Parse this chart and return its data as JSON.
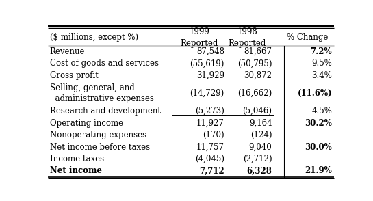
{
  "header_col0": "($ millions, except %)",
  "header_col1": "1999\nReported",
  "header_col2": "1998\nReported",
  "header_col3": "% Change",
  "rows": [
    {
      "label": "Revenue",
      "v1999": "87,548",
      "v1998": "81,667",
      "pct": "7.2%",
      "bold_label": false,
      "bold_pct": true,
      "underline_below": false
    },
    {
      "label": "Cost of goods and services",
      "v1999": "(55,619)",
      "v1998": "(50,795)",
      "pct": "9.5%",
      "bold_label": false,
      "bold_pct": false,
      "underline_below": true
    },
    {
      "label": "Gross profit",
      "v1999": "31,929",
      "v1998": "30,872",
      "pct": "3.4%",
      "bold_label": false,
      "bold_pct": false,
      "underline_below": false
    },
    {
      "label": "Selling, general, and\n  administrative expenses",
      "v1999": "(14,729)",
      "v1998": "(16,662)",
      "pct": "(11.6%)",
      "bold_label": false,
      "bold_pct": true,
      "underline_below": false
    },
    {
      "label": "Research and development",
      "v1999": "(5,273)",
      "v1998": "(5,046)",
      "pct": "4.5%",
      "bold_label": false,
      "bold_pct": false,
      "underline_below": true
    },
    {
      "label": "Operating income",
      "v1999": "11,927",
      "v1998": "9,164",
      "pct": "30.2%",
      "bold_label": false,
      "bold_pct": true,
      "underline_below": false
    },
    {
      "label": "Nonoperating expenses",
      "v1999": "(170)",
      "v1998": "(124)",
      "pct": "",
      "bold_label": false,
      "bold_pct": false,
      "underline_below": true
    },
    {
      "label": "Net income before taxes",
      "v1999": "11,757",
      "v1998": "9,040",
      "pct": "30.0%",
      "bold_label": false,
      "bold_pct": true,
      "underline_below": false
    },
    {
      "label": "Income taxes",
      "v1999": "(4,045)",
      "v1998": "(2,712)",
      "pct": "",
      "bold_label": false,
      "bold_pct": false,
      "underline_below": true
    },
    {
      "label": "Net income",
      "v1999": "7,712",
      "v1998": "6,328",
      "pct": "21.9%",
      "bold_label": true,
      "bold_pct": true,
      "underline_below": false
    }
  ],
  "fontsize": 8.5,
  "bg_color": "#ffffff",
  "text_color": "#000000"
}
